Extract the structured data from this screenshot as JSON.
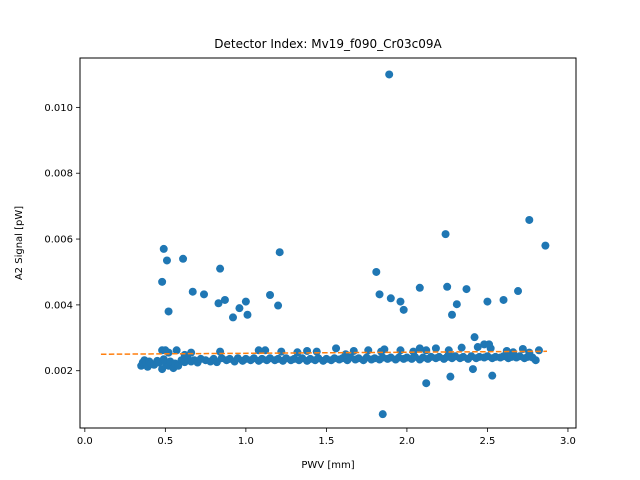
{
  "chart_data": {
    "type": "scatter",
    "title": "Detector Index: Mv19_f090_Cr03c09A",
    "xlabel": "PWV [mm]",
    "ylabel": "A2 Signal [pW]",
    "xlim": [
      -0.03,
      3.05
    ],
    "ylim": [
      0.00026,
      0.0115
    ],
    "x_ticks": [
      0.0,
      0.5,
      1.0,
      1.5,
      2.0,
      2.5,
      3.0
    ],
    "x_tick_labels": [
      "0.0",
      "0.5",
      "1.0",
      "1.5",
      "2.0",
      "2.5",
      "3.0"
    ],
    "y_ticks": [
      0.002,
      0.004,
      0.006,
      0.008,
      0.01
    ],
    "y_tick_labels": [
      "0.002",
      "0.004",
      "0.006",
      "0.008",
      "0.010"
    ],
    "colors": {
      "points": "#1f77b4",
      "fit": "#ff7f0e"
    },
    "series": [
      {
        "name": "measurements",
        "type": "scatter",
        "points": [
          [
            0.35,
            0.00215
          ],
          [
            0.36,
            0.00225
          ],
          [
            0.37,
            0.00232
          ],
          [
            0.38,
            0.0022
          ],
          [
            0.39,
            0.00212
          ],
          [
            0.4,
            0.00228
          ],
          [
            0.41,
            0.00222
          ],
          [
            0.43,
            0.00218
          ],
          [
            0.45,
            0.0023
          ],
          [
            0.46,
            0.00225
          ],
          [
            0.48,
            0.00205
          ],
          [
            0.49,
            0.00235
          ],
          [
            0.5,
            0.00225
          ],
          [
            0.52,
            0.00215
          ],
          [
            0.53,
            0.00228
          ],
          [
            0.55,
            0.00208
          ],
          [
            0.56,
            0.00222
          ],
          [
            0.58,
            0.00215
          ],
          [
            0.6,
            0.00232
          ],
          [
            0.62,
            0.00226
          ],
          [
            0.64,
            0.00236
          ],
          [
            0.66,
            0.00228
          ],
          [
            0.68,
            0.00232
          ],
          [
            0.7,
            0.00225
          ],
          [
            0.72,
            0.00236
          ],
          [
            0.75,
            0.00232
          ],
          [
            0.78,
            0.00228
          ],
          [
            0.8,
            0.00236
          ],
          [
            0.82,
            0.00226
          ],
          [
            0.85,
            0.00238
          ],
          [
            0.88,
            0.00232
          ],
          [
            0.9,
            0.00236
          ],
          [
            0.93,
            0.00228
          ],
          [
            0.95,
            0.00238
          ],
          [
            0.98,
            0.0023
          ],
          [
            1.0,
            0.00236
          ],
          [
            1.03,
            0.00232
          ],
          [
            1.05,
            0.00238
          ],
          [
            1.08,
            0.0023
          ],
          [
            1.1,
            0.00236
          ],
          [
            1.13,
            0.00232
          ],
          [
            1.15,
            0.00238
          ],
          [
            1.18,
            0.00232
          ],
          [
            1.2,
            0.00236
          ],
          [
            1.23,
            0.0023
          ],
          [
            1.25,
            0.00238
          ],
          [
            1.28,
            0.00232
          ],
          [
            1.3,
            0.00236
          ],
          [
            1.33,
            0.00232
          ],
          [
            1.35,
            0.00238
          ],
          [
            1.38,
            0.0023
          ],
          [
            1.4,
            0.00236
          ],
          [
            1.43,
            0.00232
          ],
          [
            1.45,
            0.00238
          ],
          [
            1.48,
            0.0023
          ],
          [
            1.5,
            0.00236
          ],
          [
            1.53,
            0.00232
          ],
          [
            1.55,
            0.00238
          ],
          [
            1.58,
            0.00234
          ],
          [
            1.6,
            0.00238
          ],
          [
            1.63,
            0.00232
          ],
          [
            1.65,
            0.0024
          ],
          [
            1.68,
            0.00234
          ],
          [
            1.7,
            0.00238
          ],
          [
            1.73,
            0.00232
          ],
          [
            1.75,
            0.0024
          ],
          [
            1.78,
            0.00234
          ],
          [
            1.8,
            0.00238
          ],
          [
            1.83,
            0.00234
          ],
          [
            1.85,
            0.0024
          ],
          [
            1.88,
            0.00236
          ],
          [
            1.9,
            0.0024
          ],
          [
            1.93,
            0.00234
          ],
          [
            1.95,
            0.0024
          ],
          [
            1.98,
            0.00236
          ],
          [
            2.0,
            0.0024
          ],
          [
            2.03,
            0.00236
          ],
          [
            2.05,
            0.00242
          ],
          [
            2.08,
            0.00234
          ],
          [
            2.1,
            0.0024
          ],
          [
            2.13,
            0.00236
          ],
          [
            2.15,
            0.00242
          ],
          [
            2.18,
            0.00238
          ],
          [
            2.2,
            0.00242
          ],
          [
            2.23,
            0.00236
          ],
          [
            2.25,
            0.00242
          ],
          [
            2.28,
            0.00238
          ],
          [
            2.3,
            0.00244
          ],
          [
            2.33,
            0.00238
          ],
          [
            2.35,
            0.00242
          ],
          [
            2.38,
            0.00236
          ],
          [
            2.4,
            0.00244
          ],
          [
            2.43,
            0.00238
          ],
          [
            2.45,
            0.00242
          ],
          [
            2.48,
            0.0024
          ],
          [
            2.5,
            0.00244
          ],
          [
            2.53,
            0.00238
          ],
          [
            2.55,
            0.00242
          ],
          [
            2.58,
            0.0024
          ],
          [
            2.6,
            0.00244
          ],
          [
            2.63,
            0.00238
          ],
          [
            2.65,
            0.00242
          ],
          [
            2.68,
            0.0024
          ],
          [
            2.7,
            0.00244
          ],
          [
            2.73,
            0.00238
          ],
          [
            2.75,
            0.00242
          ],
          [
            2.78,
            0.0024
          ],
          [
            2.8,
            0.00232
          ],
          [
            0.52,
            0.00255
          ],
          [
            0.62,
            0.00248
          ],
          [
            0.84,
            0.00258
          ],
          [
            1.12,
            0.00262
          ],
          [
            1.22,
            0.00258
          ],
          [
            1.32,
            0.00256
          ],
          [
            1.44,
            0.00258
          ],
          [
            1.56,
            0.00268
          ],
          [
            1.67,
            0.0026
          ],
          [
            1.76,
            0.00262
          ],
          [
            1.84,
            0.00258
          ],
          [
            1.96,
            0.00262
          ],
          [
            2.04,
            0.00258
          ],
          [
            2.12,
            0.00262
          ],
          [
            2.18,
            0.00268
          ],
          [
            2.26,
            0.00262
          ],
          [
            2.34,
            0.0027
          ],
          [
            2.44,
            0.00272
          ],
          [
            2.52,
            0.00268
          ],
          [
            2.62,
            0.0026
          ],
          [
            2.72,
            0.00266
          ],
          [
            2.82,
            0.00262
          ],
          [
            0.48,
            0.00262
          ],
          [
            0.5,
            0.00262
          ],
          [
            0.57,
            0.00262
          ],
          [
            0.66,
            0.00255
          ],
          [
            1.08,
            0.00262
          ],
          [
            1.38,
            0.0026
          ],
          [
            1.62,
            0.0025
          ],
          [
            1.86,
            0.00265
          ],
          [
            2.08,
            0.00268
          ],
          [
            2.26,
            0.00255
          ],
          [
            2.48,
            0.0028
          ],
          [
            2.51,
            0.0028
          ],
          [
            2.66,
            0.00256
          ],
          [
            2.76,
            0.00255
          ],
          [
            0.48,
            0.0047
          ],
          [
            0.49,
            0.0057
          ],
          [
            0.51,
            0.00535
          ],
          [
            0.52,
            0.0038
          ],
          [
            0.61,
            0.0054
          ],
          [
            0.67,
            0.0044
          ],
          [
            0.74,
            0.00432
          ],
          [
            0.83,
            0.00405
          ],
          [
            0.84,
            0.0051
          ],
          [
            0.87,
            0.00415
          ],
          [
            0.92,
            0.00362
          ],
          [
            0.96,
            0.0039
          ],
          [
            1.0,
            0.0041
          ],
          [
            1.01,
            0.0037
          ],
          [
            1.15,
            0.0043
          ],
          [
            1.2,
            0.00398
          ],
          [
            1.21,
            0.0056
          ],
          [
            1.81,
            0.005
          ],
          [
            1.83,
            0.00432
          ],
          [
            1.9,
            0.0042
          ],
          [
            1.96,
            0.0041
          ],
          [
            1.98,
            0.00385
          ],
          [
            2.08,
            0.00452
          ],
          [
            2.24,
            0.00615
          ],
          [
            2.25,
            0.00455
          ],
          [
            2.28,
            0.0037
          ],
          [
            2.31,
            0.00402
          ],
          [
            2.37,
            0.00448
          ],
          [
            2.42,
            0.00302
          ],
          [
            2.5,
            0.0041
          ],
          [
            2.6,
            0.00415
          ],
          [
            2.69,
            0.00442
          ],
          [
            2.76,
            0.00658
          ],
          [
            2.86,
            0.0058
          ],
          [
            1.89,
            0.011
          ],
          [
            1.85,
            0.00068
          ],
          [
            2.12,
            0.00162
          ],
          [
            2.27,
            0.00182
          ],
          [
            2.41,
            0.00205
          ],
          [
            2.53,
            0.00185
          ]
        ]
      },
      {
        "name": "fit",
        "type": "line",
        "style": "dashed",
        "x": [
          0.1,
          2.87
        ],
        "y": [
          0.0025,
          0.00259
        ]
      }
    ]
  }
}
